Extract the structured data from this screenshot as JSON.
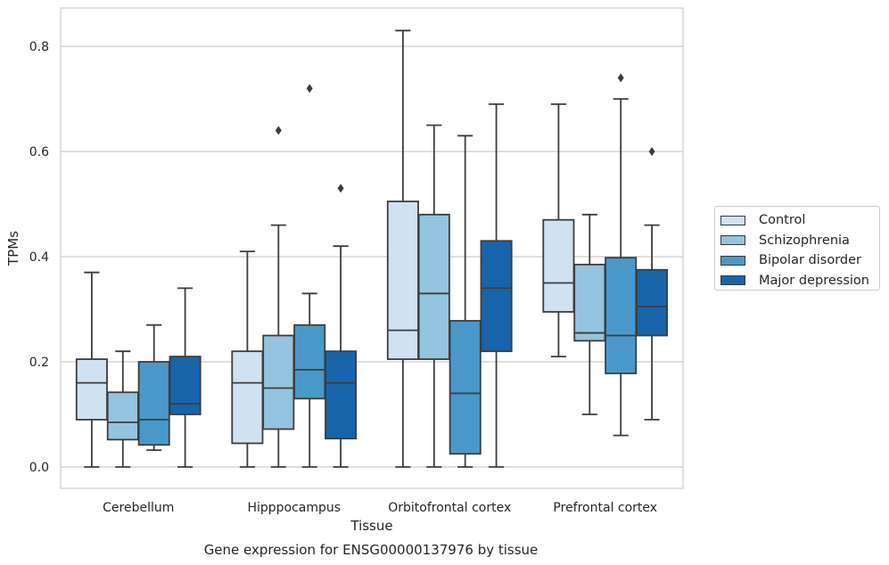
{
  "chart_data": {
    "type": "boxplot",
    "title": "Gene expression for ENSG00000137976 by tissue",
    "xlabel": "Tissue",
    "ylabel": "TPMs",
    "ylim": [
      -0.04,
      0.875
    ],
    "yticks": [
      0.0,
      0.2,
      0.4,
      0.6,
      0.8
    ],
    "ytick_labels": [
      "0.0",
      "0.2",
      "0.4",
      "0.6",
      "0.8"
    ],
    "grid": "horizontal",
    "legend_position": "right",
    "categories": [
      "Cerebellum",
      "Hipppocampus",
      "Orbitofrontal cortex",
      "Prefrontal cortex"
    ],
    "series": [
      {
        "name": "Control",
        "color": "#d0e1f2",
        "boxes": [
          {
            "whislo": 0.0,
            "q1": 0.09,
            "med": 0.16,
            "q3": 0.205,
            "whishi": 0.37,
            "fliers": []
          },
          {
            "whislo": 0.0,
            "q1": 0.045,
            "med": 0.16,
            "q3": 0.22,
            "whishi": 0.41,
            "fliers": []
          },
          {
            "whislo": 0.0,
            "q1": 0.205,
            "med": 0.26,
            "q3": 0.505,
            "whishi": 0.83,
            "fliers": []
          },
          {
            "whislo": 0.21,
            "q1": 0.295,
            "med": 0.35,
            "q3": 0.47,
            "whishi": 0.69,
            "fliers": []
          }
        ]
      },
      {
        "name": "Schizophrenia",
        "color": "#94c4df",
        "boxes": [
          {
            "whislo": 0.0,
            "q1": 0.052,
            "med": 0.085,
            "q3": 0.142,
            "whishi": 0.22,
            "fliers": []
          },
          {
            "whislo": 0.0,
            "q1": 0.072,
            "med": 0.15,
            "q3": 0.25,
            "whishi": 0.46,
            "fliers": [
              0.64
            ]
          },
          {
            "whislo": 0.0,
            "q1": 0.205,
            "med": 0.33,
            "q3": 0.48,
            "whishi": 0.65,
            "fliers": []
          },
          {
            "whislo": 0.1,
            "q1": 0.24,
            "med": 0.255,
            "q3": 0.385,
            "whishi": 0.48,
            "fliers": []
          }
        ]
      },
      {
        "name": "Bipolar disorder",
        "color": "#4a98c9",
        "boxes": [
          {
            "whislo": 0.032,
            "q1": 0.042,
            "med": 0.09,
            "q3": 0.2,
            "whishi": 0.27,
            "fliers": []
          },
          {
            "whislo": 0.0,
            "q1": 0.13,
            "med": 0.185,
            "q3": 0.27,
            "whishi": 0.33,
            "fliers": [
              0.72
            ]
          },
          {
            "whislo": 0.0,
            "q1": 0.025,
            "med": 0.14,
            "q3": 0.278,
            "whishi": 0.63,
            "fliers": []
          },
          {
            "whislo": 0.06,
            "q1": 0.178,
            "med": 0.25,
            "q3": 0.398,
            "whishi": 0.7,
            "fliers": [
              0.74
            ]
          }
        ]
      },
      {
        "name": "Major depression",
        "color": "#1764ab",
        "boxes": [
          {
            "whislo": 0.0,
            "q1": 0.1,
            "med": 0.12,
            "q3": 0.21,
            "whishi": 0.34,
            "fliers": []
          },
          {
            "whislo": 0.0,
            "q1": 0.054,
            "med": 0.16,
            "q3": 0.22,
            "whishi": 0.42,
            "fliers": [
              0.53
            ]
          },
          {
            "whislo": 0.0,
            "q1": 0.22,
            "med": 0.34,
            "q3": 0.43,
            "whishi": 0.69,
            "fliers": []
          },
          {
            "whislo": 0.09,
            "q1": 0.25,
            "med": 0.305,
            "q3": 0.375,
            "whishi": 0.46,
            "fliers": [
              0.6
            ]
          }
        ]
      }
    ]
  }
}
